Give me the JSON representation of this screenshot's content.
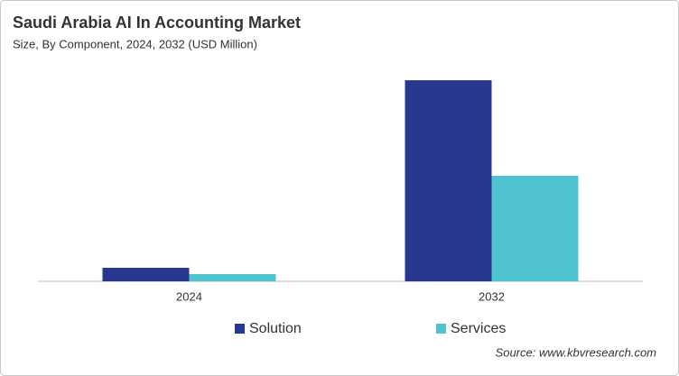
{
  "chart_data": {
    "type": "bar",
    "title": "Saudi Arabia AI In Accounting Market",
    "subtitle": "Size, By Component, 2024, 2032 (USD Million)",
    "categories": [
      "2024",
      "2032"
    ],
    "series": [
      {
        "name": "Solution",
        "color": "#283891",
        "values": [
          15,
          223
        ]
      },
      {
        "name": "Services",
        "color": "#4fc4cf",
        "values": [
          8,
          117
        ]
      }
    ],
    "source": "Source: www.kbvresearch.com"
  }
}
